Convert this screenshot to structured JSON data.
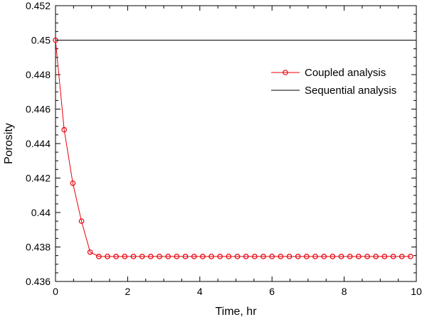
{
  "chart_data": {
    "type": "line",
    "xlabel": "Time, hr",
    "ylabel": "Porosity",
    "xlim": [
      0,
      10
    ],
    "ylim": [
      0.436,
      0.452
    ],
    "x_ticks": [
      0,
      2,
      4,
      6,
      8,
      10
    ],
    "y_ticks": [
      0.436,
      0.438,
      0.44,
      0.442,
      0.444,
      0.446,
      0.448,
      0.45,
      0.452
    ],
    "x_tick_labels": [
      "0",
      "2",
      "4",
      "6",
      "8",
      "10"
    ],
    "y_tick_labels": [
      "0.436",
      "0.438",
      "0.44",
      "0.442",
      "0.444",
      "0.446",
      "0.448",
      "0.45",
      "0.452"
    ],
    "grid": false,
    "legend_position": "upper-right",
    "series": [
      {
        "name": "Coupled analysis",
        "color": "#e8000b",
        "marker": "open-circle",
        "x": [
          0,
          0.24,
          0.48,
          0.72,
          0.96,
          1.2,
          1.44,
          1.68,
          1.92,
          2.16,
          2.4,
          2.64,
          2.88,
          3.12,
          3.36,
          3.6,
          3.84,
          4.08,
          4.32,
          4.56,
          4.8,
          5.04,
          5.28,
          5.52,
          5.76,
          6.0,
          6.24,
          6.48,
          6.72,
          6.96,
          7.2,
          7.44,
          7.68,
          7.92,
          8.16,
          8.4,
          8.64,
          8.88,
          9.12,
          9.36,
          9.6,
          9.84
        ],
        "y": [
          0.45,
          0.4448,
          0.4417,
          0.4395,
          0.4377,
          0.43745,
          0.43745,
          0.43745,
          0.43745,
          0.43745,
          0.43745,
          0.43745,
          0.43745,
          0.43745,
          0.43745,
          0.43745,
          0.43745,
          0.43745,
          0.43745,
          0.43745,
          0.43745,
          0.43745,
          0.43745,
          0.43745,
          0.43745,
          0.43745,
          0.43745,
          0.43745,
          0.43745,
          0.43745,
          0.43745,
          0.43745,
          0.43745,
          0.43745,
          0.43745,
          0.43745,
          0.43745,
          0.43745,
          0.43745,
          0.43745,
          0.43745,
          0.43745
        ]
      },
      {
        "name": "Sequential analysis",
        "color": "#000000",
        "marker": "none",
        "x": [
          0,
          10
        ],
        "y": [
          0.45,
          0.45
        ]
      }
    ]
  }
}
